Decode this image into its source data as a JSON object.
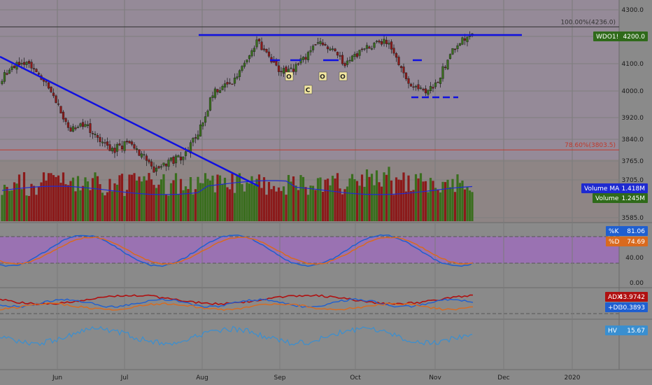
{
  "chart_data": {
    "type": "candlestick",
    "symbol": "WDO1!",
    "last_price": "4200.0",
    "price_axis": {
      "ticks": [
        "4300.0",
        "4200.0",
        "4100.0",
        "4000.0",
        "3920.0",
        "3840.0",
        "3765.0",
        "3705.0",
        "3585.0"
      ],
      "ylim": [
        3585,
        4300
      ]
    },
    "x_ticks": [
      "Jun",
      "Jul",
      "Aug",
      "Sep",
      "Oct",
      "Nov",
      "Dec",
      "2020"
    ],
    "fib_levels": [
      {
        "label": "100.00%(4236.0)",
        "value": 4236.0,
        "color": "#333333"
      },
      {
        "label": "78.60%(3803.5)",
        "value": 3803.5,
        "color": "#c0392b"
      }
    ],
    "pattern_labels": [
      "O",
      "O",
      "C",
      "O"
    ],
    "volume": {
      "ma_label": "Volume MA",
      "ma_value": "1.418M",
      "label": "Volume",
      "value": "1.245M"
    },
    "stochastic": {
      "k_label": "%K",
      "k_value": "81.06",
      "d_label": "%D",
      "d_value": "74.69",
      "ticks": [
        "40.00",
        "0.00"
      ]
    },
    "dmi": {
      "adx_label": "ADX",
      "adx_value": "43.9742",
      "di_label": "+DI",
      "di_value": "30.3893"
    },
    "hv": {
      "label": "HV",
      "value": "15.67"
    },
    "colors": {
      "bull": "#3a6e1e",
      "bear": "#8b1a1a",
      "trend": "#1010e0",
      "k_line": "#1f5fd0",
      "d_line": "#d96a1e",
      "adx": "#b01010",
      "plus_di": "#1f5fd0",
      "minus_di": "#d96a1e",
      "hv_line": "#3a8fd0",
      "price_badge": "#2f6a1a",
      "vol_ma_badge": "#1e2ad0",
      "vol_badge": "#2f6a1a"
    }
  }
}
